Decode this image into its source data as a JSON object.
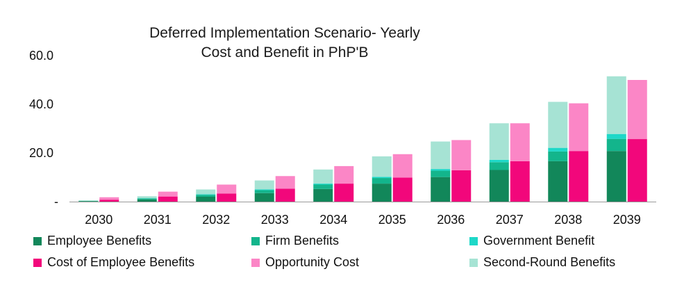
{
  "chart_data": {
    "type": "bar",
    "stacked_groups": true,
    "title_lines": [
      "Deferred Implementation Scenario- Yearly",
      "Cost and Benefit in PhP'B"
    ],
    "xlabel": "",
    "ylabel": "",
    "categories": [
      "2030",
      "2031",
      "2032",
      "2033",
      "2034",
      "2035",
      "2036",
      "2037",
      "2038",
      "2039"
    ],
    "ylim": [
      0,
      60
    ],
    "yticks": [
      {
        "value": 0,
        "label": "-"
      },
      {
        "value": 20,
        "label": "20.0"
      },
      {
        "value": 40,
        "label": "40.0"
      },
      {
        "value": 60,
        "label": "60.0"
      }
    ],
    "grid": false,
    "legend_position": "bottom",
    "stacks": {
      "benefits": [
        "Employee Benefits",
        "Firm Benefits",
        "Government Benefit",
        "Second-Round Benefits"
      ],
      "costs": [
        "Cost of Employee Benefits",
        "Opportunity Cost"
      ]
    },
    "series": [
      {
        "name": "Employee Benefits",
        "stack": "benefits",
        "color": "#12875A",
        "values": [
          0.2,
          0.9,
          2.0,
          3.5,
          5.2,
          7.4,
          10.1,
          13.0,
          16.6,
          20.8
        ]
      },
      {
        "name": "Firm Benefits",
        "stack": "benefits",
        "color": "#13B58C",
        "values": [
          0.1,
          0.4,
          0.8,
          1.2,
          1.8,
          2.3,
          2.6,
          3.2,
          4.0,
          5.0
        ]
      },
      {
        "name": "Government Benefit",
        "stack": "benefits",
        "color": "#1ED8C8",
        "values": [
          0.0,
          0.1,
          0.2,
          0.3,
          0.4,
          0.5,
          0.7,
          1.0,
          1.5,
          2.0
        ]
      },
      {
        "name": "Second-Round Benefits",
        "stack": "benefits",
        "color": "#A6E3D4",
        "values": [
          0.2,
          0.8,
          2.0,
          3.7,
          5.8,
          8.4,
          11.3,
          15.0,
          18.9,
          23.7
        ]
      },
      {
        "name": "Cost of Employee Benefits",
        "stack": "costs",
        "color": "#F2077B",
        "values": [
          0.8,
          2.1,
          3.3,
          5.3,
          7.4,
          9.9,
          12.9,
          16.6,
          20.8,
          25.7
        ]
      },
      {
        "name": "Opportunity Cost",
        "stack": "costs",
        "color": "#FB86C6",
        "values": [
          1.0,
          2.0,
          3.7,
          5.2,
          7.2,
          9.6,
          12.4,
          15.6,
          19.6,
          24.3
        ]
      }
    ],
    "legend": [
      {
        "label": "Employee Benefits",
        "color": "#12875A"
      },
      {
        "label": "Firm Benefits",
        "color": "#13B58C"
      },
      {
        "label": "Government Benefit",
        "color": "#1ED8C8"
      },
      {
        "label": "Cost of Employee Benefits",
        "color": "#F2077B"
      },
      {
        "label": "Opportunity Cost",
        "color": "#FB86C6"
      },
      {
        "label": "Second-Round Benefits",
        "color": "#A6E3D4"
      }
    ],
    "axis_color": "#999999"
  }
}
